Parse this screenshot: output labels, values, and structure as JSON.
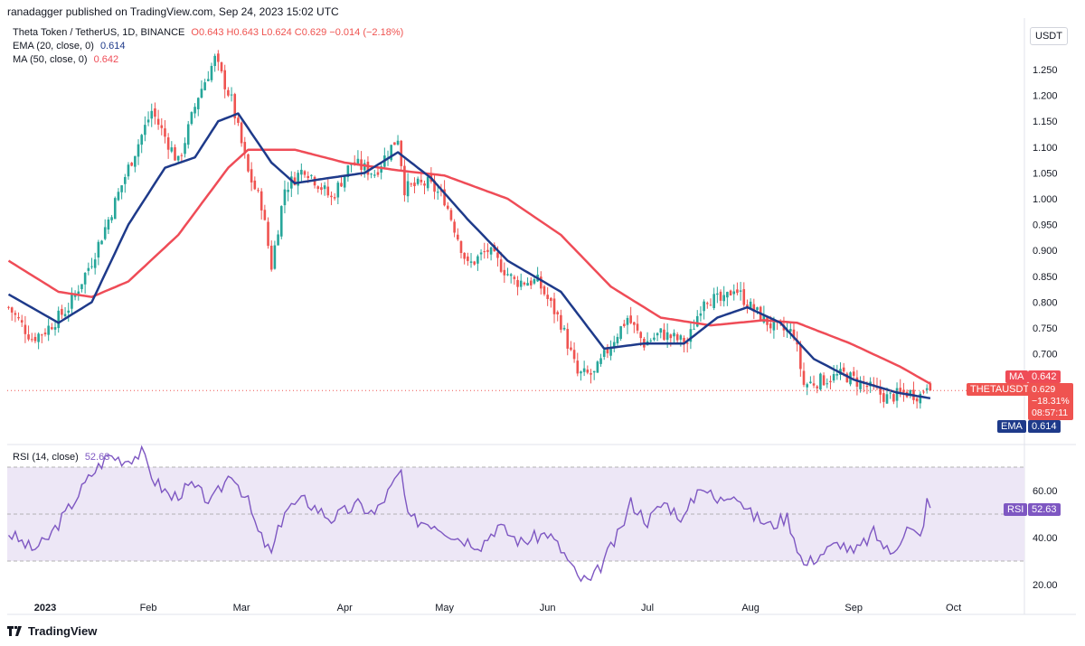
{
  "header": {
    "published": "ranadagger published on TradingView.com, Sep 24, 2023 15:02 UTC"
  },
  "legend": {
    "symbol": "Theta Token / TetherUS, 1D, BINANCE",
    "ohlc": "O0.643 H0.643 L0.624 C0.629 −0.014 (−2.18%)",
    "ema_label": "EMA (20, close, 0)",
    "ema_value": "0.614",
    "ma_label": "MA (50, close, 0)",
    "ma_value": "0.642"
  },
  "rsi_legend": {
    "label": "RSI (14, close)",
    "value": "52.63"
  },
  "currency": "USDT",
  "price_tags": {
    "ma_name": "MA",
    "ma_value": "0.642",
    "symbol": "THETAUSDT",
    "last": "0.629",
    "change": "−18.31%",
    "countdown": "08:57:11",
    "ema_name": "EMA",
    "ema_value": "0.614",
    "rsi_name": "RSI",
    "rsi_value": "52.63"
  },
  "footer": {
    "brand": "TradingView"
  },
  "colors": {
    "up": "#26a69a",
    "down": "#ef5350",
    "ema": "#1e3a8a",
    "ma": "#ef4c57",
    "rsi_line": "#7e57c2",
    "rsi_band": "#ede7f6"
  },
  "chart_data": [
    {
      "type": "candlestick",
      "title": "Theta Token / TetherUS, 1D, BINANCE",
      "x_ticks": [
        "2023",
        "Feb",
        "Mar",
        "Apr",
        "May",
        "Jun",
        "Jul",
        "Aug",
        "Sep",
        "Oct"
      ],
      "y_ticks": [
        "1.250",
        "1.200",
        "1.150",
        "1.100",
        "1.050",
        "1.000",
        "0.950",
        "0.900",
        "0.850",
        "0.800",
        "0.750",
        "0.700",
        "0.650"
      ],
      "ylim": [
        0.59,
        1.31
      ],
      "date_range": [
        "2022-12-21",
        "2023-09-24"
      ],
      "close_anchors": [
        [
          "2022-12-21",
          0.79
        ],
        [
          "2022-12-28",
          0.73
        ],
        [
          "2023-01-01",
          0.745
        ],
        [
          "2023-01-08",
          0.79
        ],
        [
          "2023-01-15",
          0.88
        ],
        [
          "2023-01-20",
          0.96
        ],
        [
          "2023-01-26",
          1.06
        ],
        [
          "2023-02-02",
          1.17
        ],
        [
          "2023-02-10",
          1.07
        ],
        [
          "2023-02-16",
          1.2
        ],
        [
          "2023-02-21",
          1.27
        ],
        [
          "2023-02-26",
          1.19
        ],
        [
          "2023-03-03",
          1.05
        ],
        [
          "2023-03-07",
          0.99
        ],
        [
          "2023-03-10",
          0.87
        ],
        [
          "2023-03-14",
          1.02
        ],
        [
          "2023-03-20",
          1.06
        ],
        [
          "2023-03-28",
          1.0
        ],
        [
          "2023-04-03",
          1.07
        ],
        [
          "2023-04-10",
          1.05
        ],
        [
          "2023-04-17",
          1.12
        ],
        [
          "2023-04-19",
          1.02
        ],
        [
          "2023-04-26",
          1.03
        ],
        [
          "2023-05-01",
          1.0
        ],
        [
          "2023-05-08",
          0.87
        ],
        [
          "2023-05-14",
          0.9
        ],
        [
          "2023-05-22",
          0.84
        ],
        [
          "2023-05-29",
          0.84
        ],
        [
          "2023-06-05",
          0.76
        ],
        [
          "2023-06-10",
          0.66
        ],
        [
          "2023-06-15",
          0.66
        ],
        [
          "2023-06-21",
          0.73
        ],
        [
          "2023-06-25",
          0.77
        ],
        [
          "2023-06-30",
          0.72
        ],
        [
          "2023-07-05",
          0.74
        ],
        [
          "2023-07-13",
          0.72
        ],
        [
          "2023-07-18",
          0.81
        ],
        [
          "2023-07-24",
          0.8
        ],
        [
          "2023-07-27",
          0.83
        ],
        [
          "2023-08-01",
          0.79
        ],
        [
          "2023-08-08",
          0.75
        ],
        [
          "2023-08-14",
          0.74
        ],
        [
          "2023-08-17",
          0.64
        ],
        [
          "2023-08-23",
          0.65
        ],
        [
          "2023-08-29",
          0.66
        ],
        [
          "2023-09-04",
          0.64
        ],
        [
          "2023-09-11",
          0.615
        ],
        [
          "2023-09-17",
          0.625
        ],
        [
          "2023-09-21",
          0.62
        ],
        [
          "2023-09-23",
          0.643
        ],
        [
          "2023-09-24",
          0.629
        ]
      ],
      "ema20_anchors": [
        [
          "2022-12-21",
          0.815
        ],
        [
          "2023-01-05",
          0.76
        ],
        [
          "2023-01-15",
          0.8
        ],
        [
          "2023-01-26",
          0.95
        ],
        [
          "2023-02-06",
          1.06
        ],
        [
          "2023-02-15",
          1.08
        ],
        [
          "2023-02-22",
          1.15
        ],
        [
          "2023-02-28",
          1.165
        ],
        [
          "2023-03-10",
          1.07
        ],
        [
          "2023-03-17",
          1.03
        ],
        [
          "2023-03-27",
          1.04
        ],
        [
          "2023-04-07",
          1.05
        ],
        [
          "2023-04-17",
          1.09
        ],
        [
          "2023-04-27",
          1.04
        ],
        [
          "2023-05-08",
          0.96
        ],
        [
          "2023-05-20",
          0.88
        ],
        [
          "2023-06-05",
          0.82
        ],
        [
          "2023-06-18",
          0.71
        ],
        [
          "2023-06-30",
          0.72
        ],
        [
          "2023-07-12",
          0.72
        ],
        [
          "2023-07-22",
          0.77
        ],
        [
          "2023-07-31",
          0.79
        ],
        [
          "2023-08-10",
          0.76
        ],
        [
          "2023-08-20",
          0.69
        ],
        [
          "2023-09-01",
          0.65
        ],
        [
          "2023-09-14",
          0.625
        ],
        [
          "2023-09-24",
          0.614
        ]
      ],
      "ma50_anchors": [
        [
          "2022-12-21",
          0.88
        ],
        [
          "2023-01-05",
          0.82
        ],
        [
          "2023-01-15",
          0.81
        ],
        [
          "2023-01-26",
          0.84
        ],
        [
          "2023-02-10",
          0.93
        ],
        [
          "2023-02-25",
          1.06
        ],
        [
          "2023-03-03",
          1.095
        ],
        [
          "2023-03-17",
          1.095
        ],
        [
          "2023-04-01",
          1.07
        ],
        [
          "2023-04-17",
          1.055
        ],
        [
          "2023-05-01",
          1.045
        ],
        [
          "2023-05-20",
          1.0
        ],
        [
          "2023-06-05",
          0.93
        ],
        [
          "2023-06-20",
          0.83
        ],
        [
          "2023-07-05",
          0.77
        ],
        [
          "2023-07-20",
          0.755
        ],
        [
          "2023-08-05",
          0.765
        ],
        [
          "2023-08-15",
          0.76
        ],
        [
          "2023-08-31",
          0.72
        ],
        [
          "2023-09-15",
          0.675
        ],
        [
          "2023-09-24",
          0.642
        ]
      ]
    },
    {
      "type": "line",
      "title": "RSI (14, close)",
      "y_ticks": [
        "60.00",
        "40.00",
        "20.00"
      ],
      "ylim": [
        17,
        80
      ],
      "bands": [
        30,
        70
      ],
      "anchors": [
        [
          "2022-12-21",
          42
        ],
        [
          "2022-12-28",
          35
        ],
        [
          "2023-01-01",
          38
        ],
        [
          "2023-01-07",
          50
        ],
        [
          "2023-01-15",
          67
        ],
        [
          "2023-01-20",
          75
        ],
        [
          "2023-01-25",
          73
        ],
        [
          "2023-01-30",
          76
        ],
        [
          "2023-02-03",
          64
        ],
        [
          "2023-02-08",
          57
        ],
        [
          "2023-02-14",
          62
        ],
        [
          "2023-02-20",
          55
        ],
        [
          "2023-02-26",
          68
        ],
        [
          "2023-03-03",
          55
        ],
        [
          "2023-03-06",
          42
        ],
        [
          "2023-03-10",
          33
        ],
        [
          "2023-03-14",
          52
        ],
        [
          "2023-03-20",
          56
        ],
        [
          "2023-03-28",
          48
        ],
        [
          "2023-04-05",
          54
        ],
        [
          "2023-04-10",
          50
        ],
        [
          "2023-04-18",
          68
        ],
        [
          "2023-04-20",
          48
        ],
        [
          "2023-04-28",
          46
        ],
        [
          "2023-05-05",
          40
        ],
        [
          "2023-05-12",
          37
        ],
        [
          "2023-05-17",
          45
        ],
        [
          "2023-05-24",
          38
        ],
        [
          "2023-06-01",
          42
        ],
        [
          "2023-06-06",
          33
        ],
        [
          "2023-06-10",
          23
        ],
        [
          "2023-06-14",
          21
        ],
        [
          "2023-06-17",
          28
        ],
        [
          "2023-06-23",
          43
        ],
        [
          "2023-06-26",
          55
        ],
        [
          "2023-07-01",
          47
        ],
        [
          "2023-07-06",
          55
        ],
        [
          "2023-07-12",
          48
        ],
        [
          "2023-07-17",
          63
        ],
        [
          "2023-07-22",
          55
        ],
        [
          "2023-07-27",
          60
        ],
        [
          "2023-08-01",
          50
        ],
        [
          "2023-08-07",
          45
        ],
        [
          "2023-08-12",
          49
        ],
        [
          "2023-08-17",
          28
        ],
        [
          "2023-08-22",
          33
        ],
        [
          "2023-08-28",
          38
        ],
        [
          "2023-09-01",
          33
        ],
        [
          "2023-09-07",
          42
        ],
        [
          "2023-09-12",
          33
        ],
        [
          "2023-09-17",
          44
        ],
        [
          "2023-09-21",
          40
        ],
        [
          "2023-09-23",
          55
        ],
        [
          "2023-09-24",
          52.63
        ]
      ]
    }
  ]
}
